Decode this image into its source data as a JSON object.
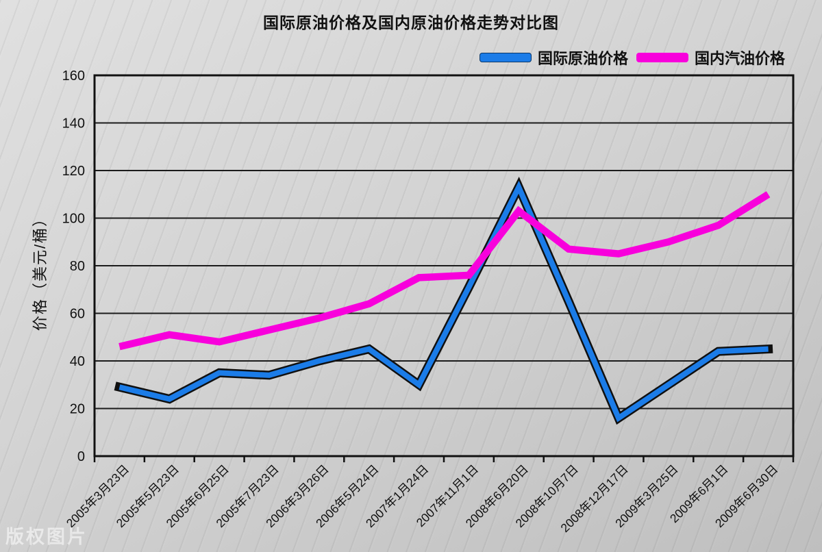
{
  "page": {
    "watermark": "版权图片"
  },
  "chart_data": {
    "type": "line",
    "title": "国际原油价格及国内原油价格走势对比图",
    "xlabel": "",
    "ylabel": "价格（美元/桶）",
    "ylim": [
      0,
      160
    ],
    "yticks": [
      0,
      20,
      40,
      60,
      80,
      100,
      120,
      140,
      160
    ],
    "grid": "horizontal",
    "legend_position": "top-right",
    "categories": [
      "2005年3月23日",
      "2005年5月23日",
      "2005年6月25日",
      "2005年7月23日",
      "2006年3月26日",
      "2006年5月24日",
      "2007年1月24日",
      "2007年11月1日",
      "2008年6月20日",
      "2008年10月7日",
      "2008年12月17日",
      "2009年3月25日",
      "2009年6月1日",
      "2009年6月30日"
    ],
    "series": [
      {
        "name": "国际原油价格",
        "color": "#1B7CE8",
        "outline": "#101010",
        "values": [
          29,
          24,
          35,
          34,
          40,
          45,
          30,
          71,
          113,
          65,
          16,
          30,
          44,
          45
        ]
      },
      {
        "name": "国内汽油价格",
        "color": "#F800DC",
        "outline": null,
        "values": [
          46,
          51,
          48,
          53,
          58,
          64,
          75,
          76,
          103,
          87,
          85,
          90,
          97,
          110
        ]
      }
    ]
  },
  "colors": {
    "background": "#d2d2d2",
    "grid": "#1b1b1b",
    "axis": "#111111",
    "text": "#111111"
  }
}
